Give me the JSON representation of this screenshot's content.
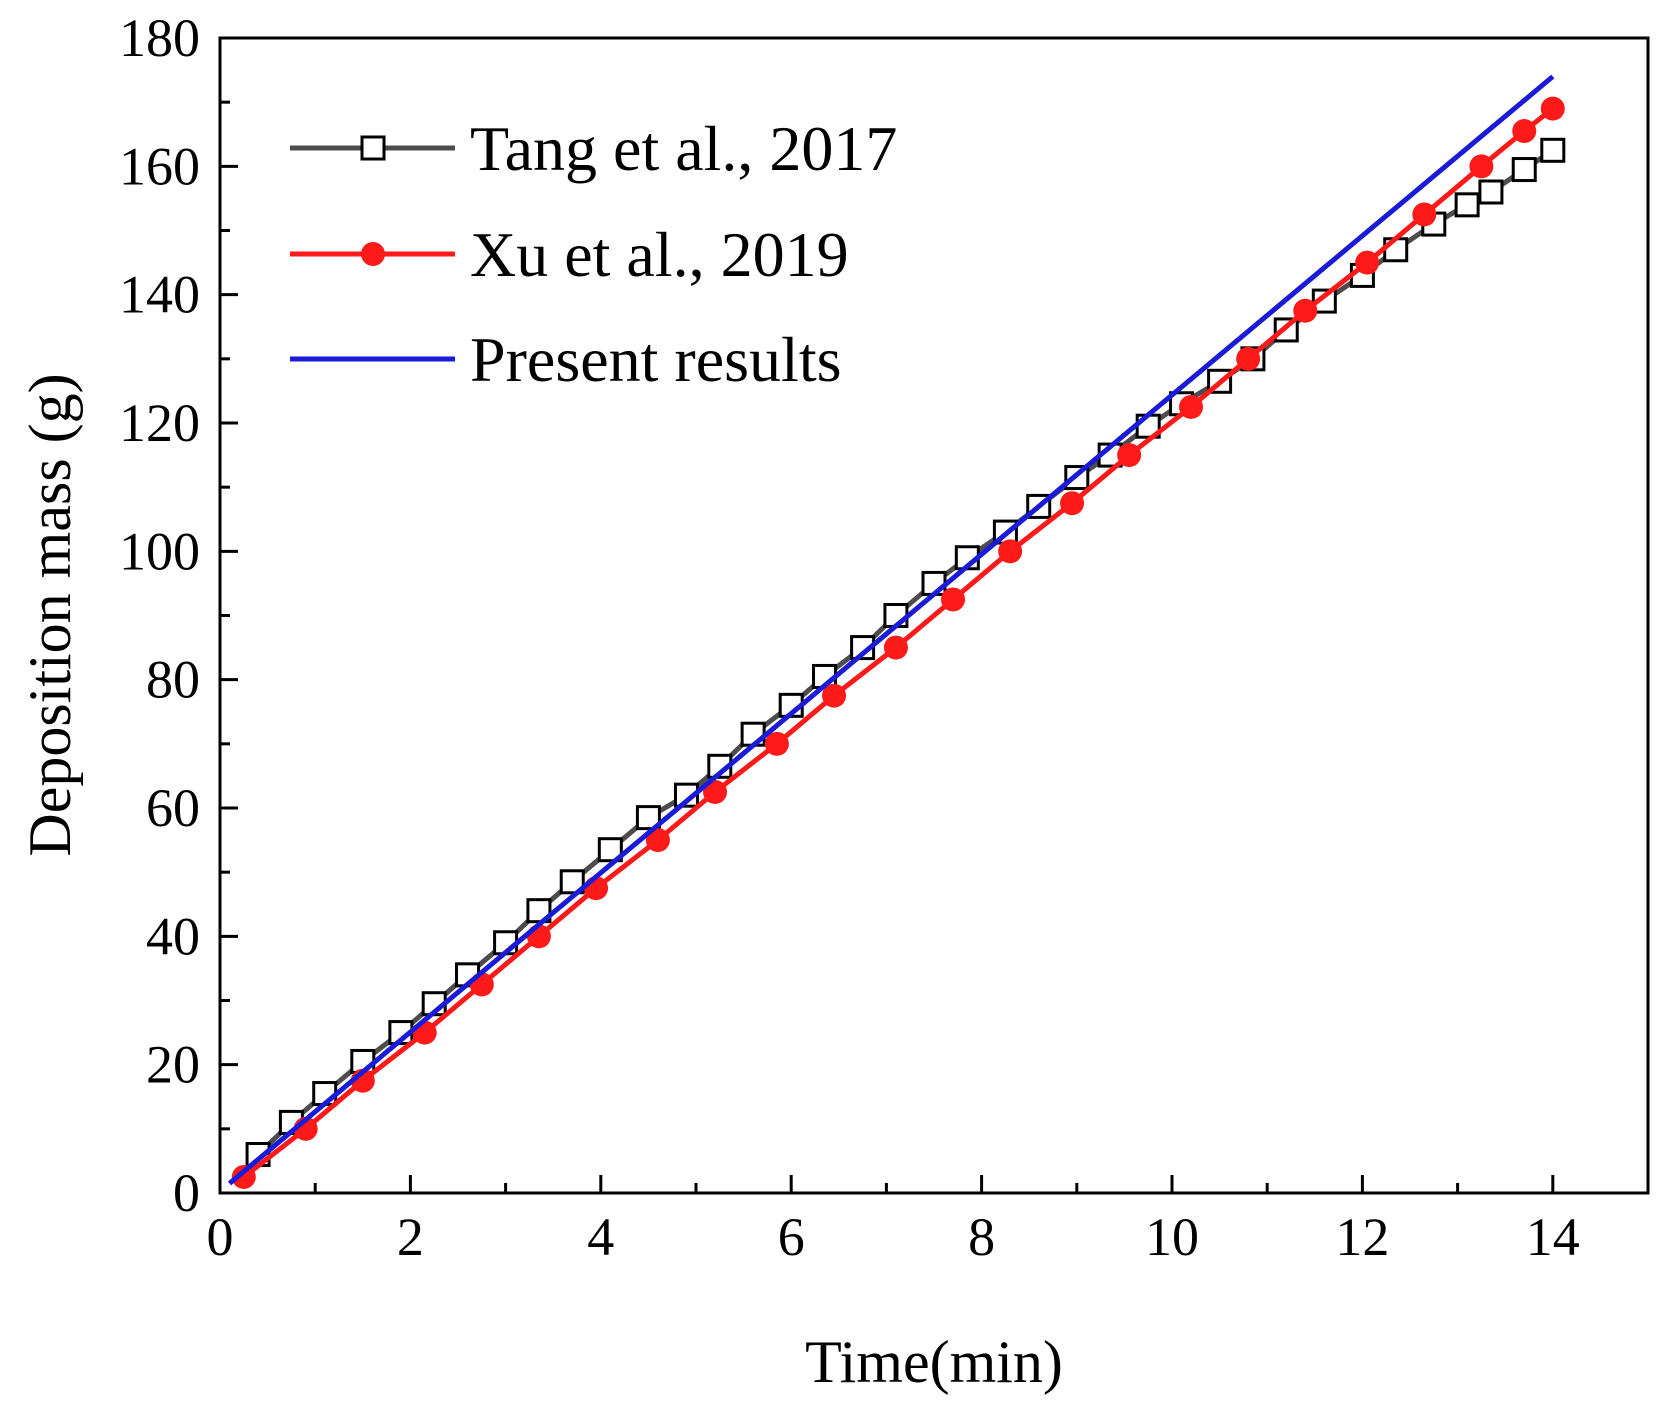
{
  "chart_data": {
    "type": "line",
    "title": "",
    "xlabel": "Time(min)",
    "ylabel": "Deposition mass (g)",
    "xlim": [
      0,
      15
    ],
    "ylim": [
      0,
      180
    ],
    "xticks": [
      0,
      2,
      4,
      6,
      8,
      10,
      12,
      14
    ],
    "yticks": [
      0,
      20,
      40,
      60,
      80,
      100,
      120,
      140,
      160,
      180
    ],
    "grid": false,
    "legend_position": "top-left",
    "series": [
      {
        "name": "Tang et al., 2017",
        "color": "#4d4d4d",
        "marker": "open-square",
        "x": [
          0.4,
          0.75,
          1.1,
          1.5,
          1.9,
          2.25,
          2.6,
          3.0,
          3.35,
          3.7,
          4.1,
          4.5,
          4.9,
          5.25,
          5.6,
          6.0,
          6.35,
          6.75,
          7.1,
          7.5,
          7.85,
          8.25,
          8.6,
          9.0,
          9.35,
          9.75,
          10.1,
          10.5,
          10.85,
          11.2,
          11.6,
          12.0,
          12.35,
          12.75,
          13.1,
          13.35,
          13.7,
          14.0
        ],
        "y": [
          6,
          11,
          15.5,
          20.5,
          25,
          29.5,
          34,
          39,
          44,
          48.5,
          53.5,
          58.5,
          62,
          66.5,
          71.5,
          76,
          80.5,
          85,
          90,
          95,
          99,
          103,
          107,
          111.5,
          115,
          119.5,
          123,
          126.5,
          130,
          134.5,
          139,
          143,
          147,
          151,
          154,
          156,
          159.5,
          162.5
        ]
      },
      {
        "name": "Xu et al., 2019",
        "color": "#ff1a1a",
        "marker": "filled-circle",
        "x": [
          0.25,
          0.9,
          1.5,
          2.15,
          2.75,
          3.35,
          3.95,
          4.6,
          5.2,
          5.85,
          6.45,
          7.1,
          7.7,
          8.3,
          8.95,
          9.55,
          10.2,
          10.8,
          11.4,
          12.05,
          12.65,
          13.25,
          13.7,
          14.0
        ],
        "y": [
          2.5,
          10,
          17.5,
          25,
          32.5,
          40,
          47.5,
          55,
          62.5,
          70,
          77.5,
          85,
          92.5,
          100,
          107.5,
          115,
          122.5,
          130,
          137.5,
          145,
          152.5,
          160,
          165.5,
          169
        ]
      },
      {
        "name": "Present results",
        "color": "#1a1ad9",
        "marker": "none",
        "x": [
          0.1,
          14.0
        ],
        "y": [
          1.5,
          174
        ]
      }
    ]
  }
}
